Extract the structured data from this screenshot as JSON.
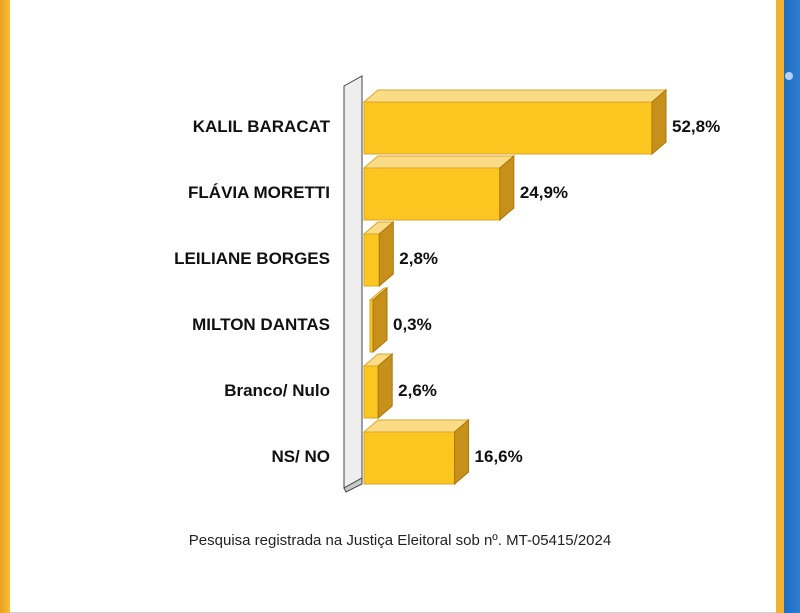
{
  "chart_data": {
    "type": "bar",
    "orientation": "horizontal",
    "style": "3d",
    "categories": [
      "KALIL BARACAT",
      "FLÁVIA MORETTI",
      "LEILIANE BORGES",
      "MILTON DANTAS",
      "Branco/ Nulo",
      "NS/ NO"
    ],
    "values": [
      52.8,
      24.9,
      2.8,
      0.3,
      2.6,
      16.6
    ],
    "value_labels": [
      "52,8%",
      "24,9%",
      "2,8%",
      "0,3%",
      "2,6%",
      "16,6%"
    ],
    "title": "",
    "xlabel": "",
    "ylabel": "",
    "xlim": [
      0,
      55
    ],
    "grid": false,
    "legend": "none",
    "colors": {
      "bar_front": "#fcc620",
      "bar_top": "#fbdc86",
      "bar_side": "#c7901a",
      "wall": "#eeeeee",
      "accent_left": "#f2ad2a",
      "accent_right": "#1f6dc0"
    }
  },
  "footnote": "Pesquisa registrada na Justiça Eleitoral sob nº. MT-05415/2024"
}
